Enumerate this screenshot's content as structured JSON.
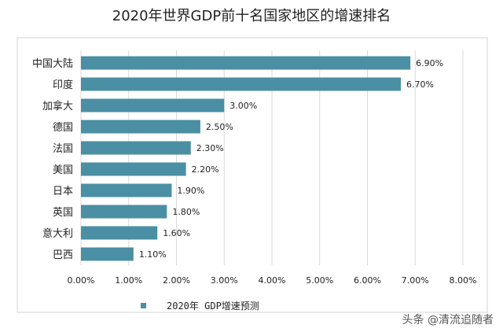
{
  "chart_data": {
    "type": "bar",
    "orientation": "horizontal",
    "title": "2020年世界GDP前十名国家地区的增速排名",
    "categories": [
      "中国大陆",
      "印度",
      "加拿大",
      "德国",
      "法国",
      "美国",
      "日本",
      "英国",
      "意大利",
      "巴西"
    ],
    "series": [
      {
        "name": "2020年 GDP增速预测",
        "values": [
          6.9,
          6.7,
          3.0,
          2.5,
          2.3,
          2.2,
          1.9,
          1.8,
          1.6,
          1.1
        ]
      }
    ],
    "data_labels": [
      "6.90%",
      "6.70%",
      "3.00%",
      "2.50%",
      "2.30%",
      "2.20%",
      "1.90%",
      "1.80%",
      "1.60%",
      "1.10%"
    ],
    "x_ticks": [
      "0.00%",
      "1.00%",
      "2.00%",
      "3.00%",
      "4.00%",
      "5.00%",
      "6.00%",
      "7.00%",
      "8.00%"
    ],
    "xlim": [
      0,
      8
    ],
    "grid": true,
    "legend_position": "bottom",
    "bar_color": "#4a8fa3"
  },
  "watermark": "头条 @清流追随者"
}
